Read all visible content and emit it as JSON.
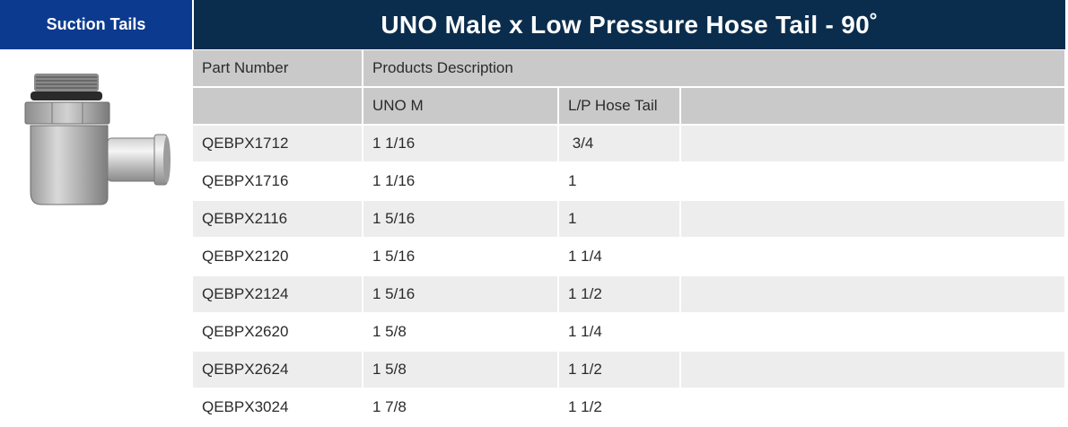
{
  "category": "Suction Tails",
  "title": "UNO Male x Low Pressure Hose Tail - 90˚",
  "table": {
    "col_part": "Part Number",
    "col_desc": "Products Description",
    "sub_uno": "UNO M",
    "sub_hose": "L/P Hose Tail",
    "rows": [
      {
        "part": "QEBPX1712",
        "uno": "1 1/16",
        "hose": " 3/4"
      },
      {
        "part": "QEBPX1716",
        "uno": "1 1/16",
        "hose": "1"
      },
      {
        "part": "QEBPX2116",
        "uno": "1 5/16",
        "hose": "1"
      },
      {
        "part": "QEBPX2120",
        "uno": "1 5/16",
        "hose": "1 1/4"
      },
      {
        "part": "QEBPX2124",
        "uno": "1 5/16",
        "hose": "1 1/2"
      },
      {
        "part": "QEBPX2620",
        "uno": "1 5/8",
        "hose": "1 1/4"
      },
      {
        "part": "QEBPX2624",
        "uno": "1 5/8",
        "hose": "1 1/2"
      },
      {
        "part": "QEBPX3024",
        "uno": "1 7/8",
        "hose": "1 1/2"
      }
    ]
  },
  "colors": {
    "category_bg": "#0c3a8f",
    "title_bg": "#0b2d4d",
    "header_bg": "#c9c9c9",
    "stripe_bg": "#ededed"
  }
}
